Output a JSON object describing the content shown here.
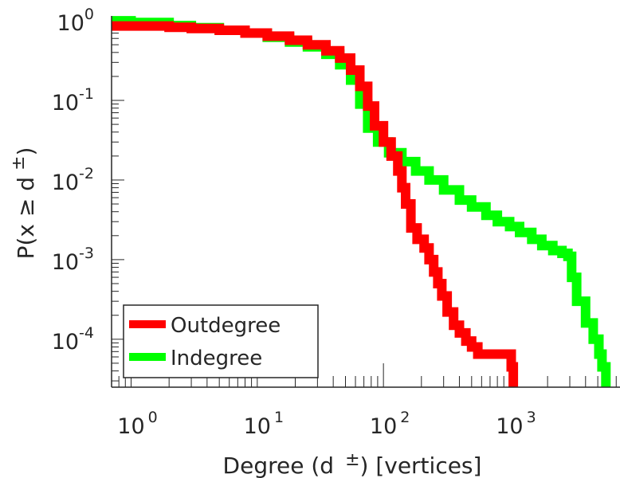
{
  "chart_data": {
    "type": "line",
    "xscale": "log",
    "yscale": "log",
    "xlabel": "Degree (d ±) [vertices]",
    "xlabel_parts": {
      "pre": "Degree (d",
      "sup": "±",
      "post": ") [vertices]"
    },
    "ylabel": "P(x ≥ d ±)",
    "ylabel_parts": {
      "pre": "P(x ≥ d",
      "sup": "±",
      "post": ")"
    },
    "xlim": [
      0.7,
      7500
    ],
    "ylim": [
      2.5e-05,
      1.15
    ],
    "x_ticks": [
      {
        "base": "10",
        "exp": "0",
        "value": 1
      },
      {
        "base": "10",
        "exp": "1",
        "value": 10
      },
      {
        "base": "10",
        "exp": "2",
        "value": 100
      },
      {
        "base": "10",
        "exp": "3",
        "value": 1000
      }
    ],
    "y_ticks": [
      {
        "base": "10",
        "exp": "0",
        "value": 1
      },
      {
        "base": "10",
        "exp": "-1",
        "value": 0.1
      },
      {
        "base": "10",
        "exp": "-2",
        "value": 0.01
      },
      {
        "base": "10",
        "exp": "-3",
        "value": 0.001
      },
      {
        "base": "10",
        "exp": "-4",
        "value": 0.0001
      }
    ],
    "legend": {
      "position": "bottom-left"
    },
    "series": [
      {
        "name": "Outdegree",
        "color": "#ff0000",
        "points": [
          [
            0.7,
            0.86
          ],
          [
            1,
            0.86
          ],
          [
            2,
            0.83
          ],
          [
            3,
            0.8
          ],
          [
            5,
            0.76
          ],
          [
            8,
            0.7
          ],
          [
            12,
            0.64
          ],
          [
            18,
            0.57
          ],
          [
            25,
            0.5
          ],
          [
            35,
            0.42
          ],
          [
            45,
            0.34
          ],
          [
            55,
            0.24
          ],
          [
            65,
            0.15
          ],
          [
            75,
            0.085
          ],
          [
            85,
            0.048
          ],
          [
            100,
            0.03
          ],
          [
            115,
            0.02
          ],
          [
            130,
            0.013
          ],
          [
            140,
            0.008
          ],
          [
            150,
            0.005
          ],
          [
            165,
            0.0025
          ],
          [
            185,
            0.0018
          ],
          [
            210,
            0.0014
          ],
          [
            230,
            0.001
          ],
          [
            250,
            0.0007
          ],
          [
            270,
            0.0005
          ],
          [
            290,
            0.00035
          ],
          [
            320,
            0.00022
          ],
          [
            360,
            0.00015
          ],
          [
            400,
            0.00012
          ],
          [
            450,
            9.5e-05
          ],
          [
            500,
            8e-05
          ],
          [
            560,
            6.5e-05
          ],
          [
            1000,
            6.5e-05
          ],
          [
            1030,
            4.5e-05
          ],
          [
            1070,
            2.5e-05
          ]
        ]
      },
      {
        "name": "Indegree",
        "color": "#00ff00",
        "points": [
          [
            0.7,
            1
          ],
          [
            1,
            0.95
          ],
          [
            2,
            0.87
          ],
          [
            3,
            0.82
          ],
          [
            5,
            0.76
          ],
          [
            8,
            0.7
          ],
          [
            12,
            0.62
          ],
          [
            18,
            0.54
          ],
          [
            25,
            0.47
          ],
          [
            35,
            0.38
          ],
          [
            45,
            0.28
          ],
          [
            55,
            0.18
          ],
          [
            65,
            0.09
          ],
          [
            75,
            0.045
          ],
          [
            90,
            0.03
          ],
          [
            110,
            0.022
          ],
          [
            140,
            0.017
          ],
          [
            180,
            0.013
          ],
          [
            230,
            0.01
          ],
          [
            300,
            0.0075
          ],
          [
            400,
            0.0056
          ],
          [
            500,
            0.0046
          ],
          [
            650,
            0.0036
          ],
          [
            800,
            0.003
          ],
          [
            1000,
            0.0026
          ],
          [
            1200,
            0.0022
          ],
          [
            1500,
            0.0018
          ],
          [
            1800,
            0.0015
          ],
          [
            2200,
            0.0013
          ],
          [
            2600,
            0.0012
          ],
          [
            2900,
            0.0011
          ],
          [
            3100,
            0.0006
          ],
          [
            3400,
            0.0003
          ],
          [
            4000,
            0.00016
          ],
          [
            4600,
            0.0001
          ],
          [
            5100,
            6.5e-05
          ],
          [
            5400,
            4.5e-05
          ],
          [
            5800,
            2.5e-05
          ]
        ]
      }
    ]
  }
}
